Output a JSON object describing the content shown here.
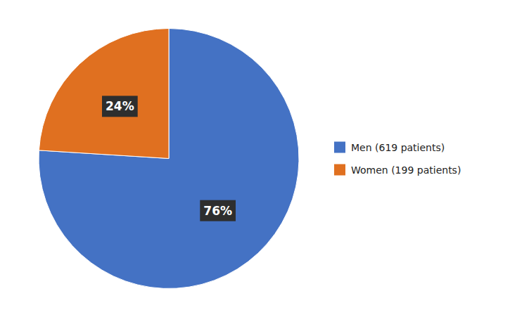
{
  "chart_data": {
    "type": "pie",
    "categories": [
      "Men (619 patients)",
      "Women (199 patients)"
    ],
    "values": [
      76,
      24
    ],
    "value_labels": [
      "76%",
      "24%"
    ],
    "colors": [
      "#4472C4",
      "#E07020"
    ],
    "data_labels": true,
    "legend": "right"
  }
}
